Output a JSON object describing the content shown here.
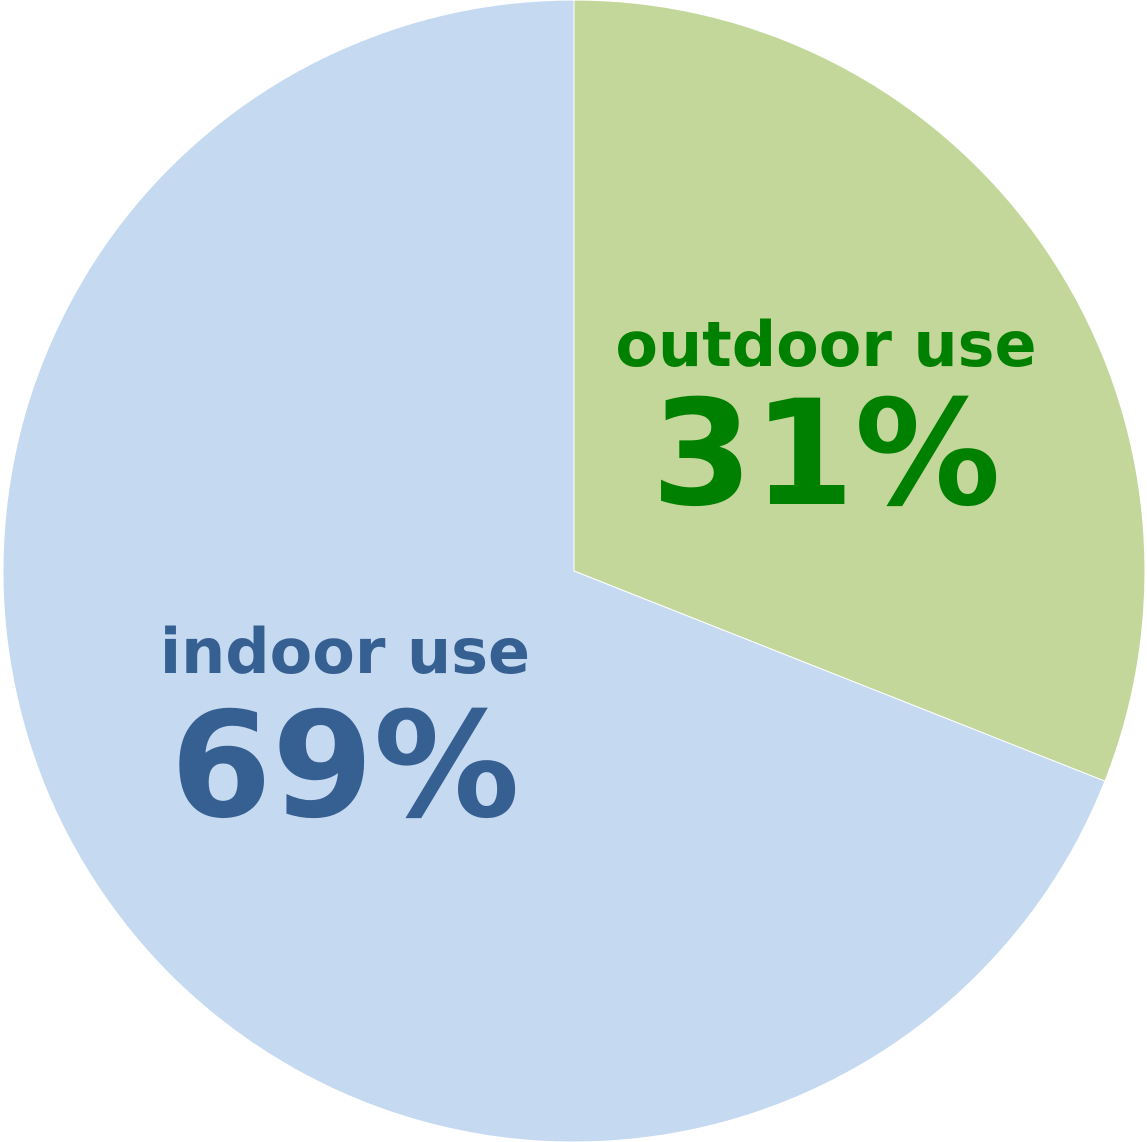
{
  "chart_data": {
    "type": "pie",
    "start": "12 o'clock",
    "direction": "clockwise",
    "slices": [
      {
        "label": "outdoor use",
        "value": 31,
        "value_label": "31%",
        "fill": "#c4d79b",
        "text_color": "#008000"
      },
      {
        "label": "indoor use",
        "value": 69,
        "value_label": "69%",
        "fill": "#c5d9f1",
        "text_color": "#376092"
      }
    ]
  }
}
